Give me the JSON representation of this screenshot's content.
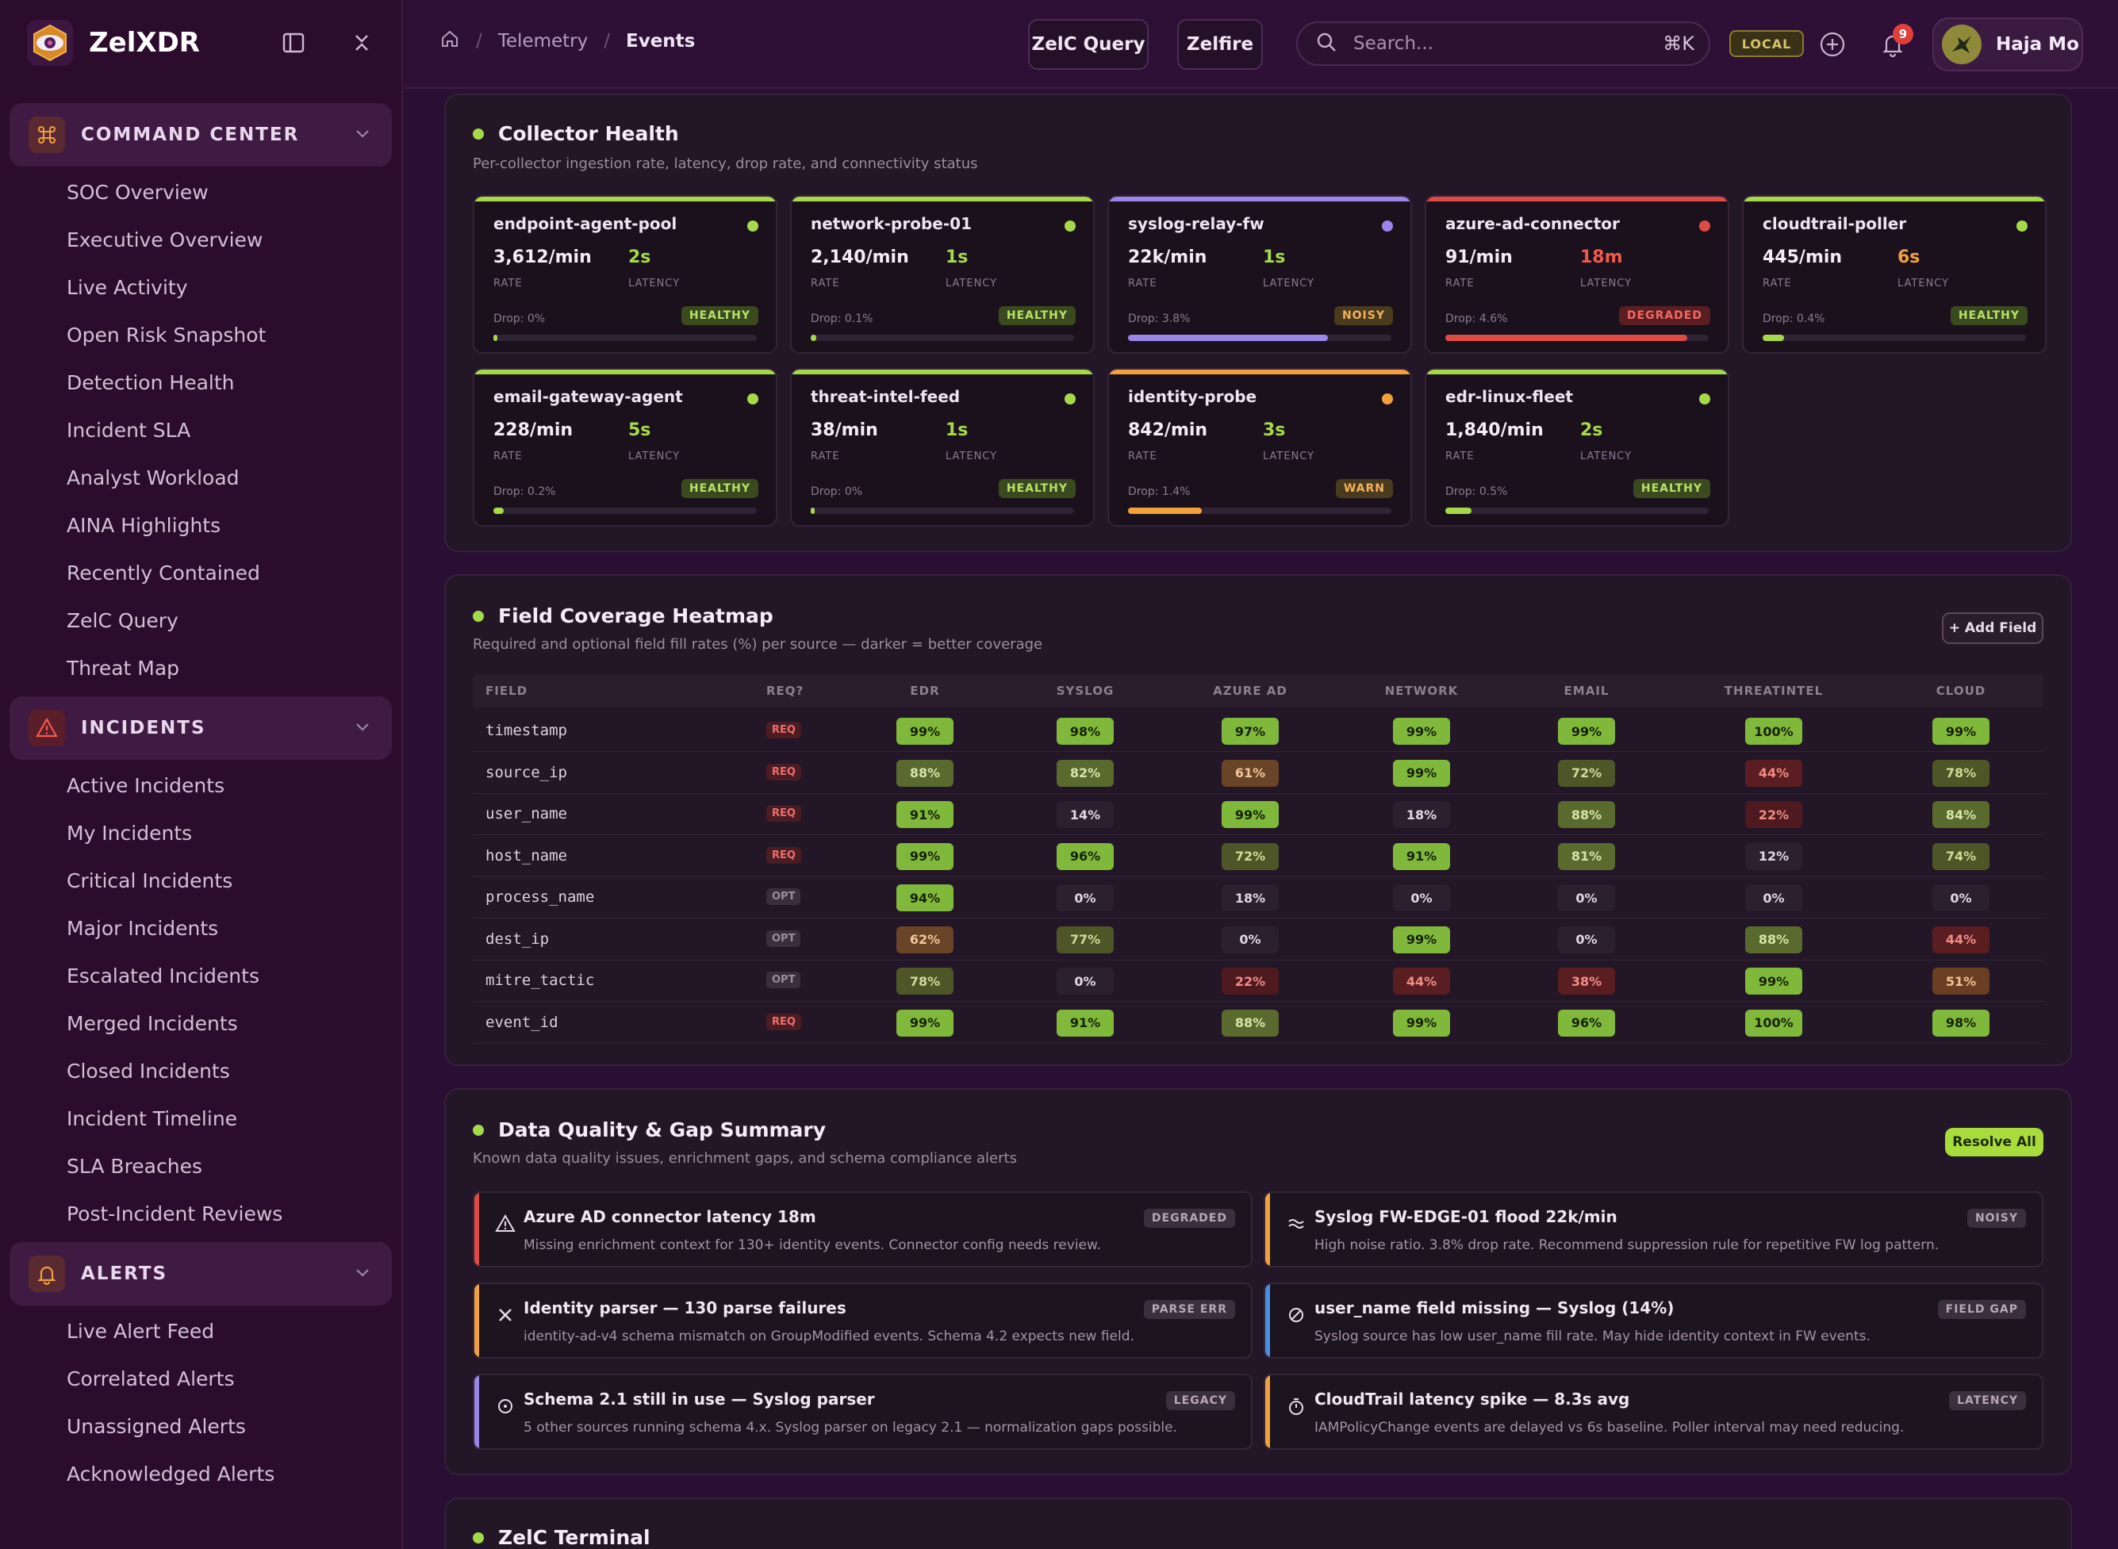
{
  "app": {
    "name": "ZelXDR"
  },
  "sidebar": {
    "sections": [
      {
        "label": "COMMAND CENTER",
        "items": [
          "SOC Overview",
          "Executive Overview",
          "Live Activity",
          "Open Risk Snapshot",
          "Detection Health",
          "Incident SLA",
          "Analyst Workload",
          "AINA Highlights",
          "Recently Contained",
          "ZelC Query",
          "Threat Map"
        ]
      },
      {
        "label": "INCIDENTS",
        "items": [
          "Active Incidents",
          "My Incidents",
          "Critical Incidents",
          "Major Incidents",
          "Escalated Incidents",
          "Merged Incidents",
          "Closed Incidents",
          "Incident Timeline",
          "SLA Breaches",
          "Post-Incident Reviews"
        ]
      },
      {
        "label": "ALERTS",
        "items": [
          "Live Alert Feed",
          "Correlated Alerts",
          "Unassigned Alerts",
          "Acknowledged Alerts"
        ]
      }
    ]
  },
  "topbar": {
    "breadcrumb": [
      "Telemetry",
      "Events"
    ],
    "query_btn": "ZelC Query",
    "zelfire_btn": "Zelfire",
    "search_placeholder": "Search...",
    "search_shortcut": "⌘K",
    "env_badge": "LOCAL",
    "notification_count": "9",
    "user_name": "Haja Mo"
  },
  "collector_health": {
    "title": "Collector Health",
    "subtitle": "Per-collector ingestion rate, latency, drop rate, and connectivity status",
    "rate_label": "RATE",
    "latency_label": "LATENCY",
    "collectors": [
      {
        "name": "endpoint-agent-pool",
        "rate": "3,612/min",
        "latency": "2s",
        "drop": "Drop: 0%",
        "status": "HEALTHY",
        "accent": "#a6d94a",
        "latency_color": "#a6d94a",
        "drop_fraction": 0
      },
      {
        "name": "network-probe-01",
        "rate": "2,140/min",
        "latency": "1s",
        "drop": "Drop: 0.1%",
        "status": "HEALTHY",
        "accent": "#a6d94a",
        "latency_color": "#a6d94a",
        "drop_fraction": 0.02
      },
      {
        "name": "syslog-relay-fw",
        "rate": "22k/min",
        "latency": "1s",
        "drop": "Drop: 3.8%",
        "status": "NOISY",
        "accent": "#9a86e8",
        "latency_color": "#a6d94a",
        "drop_fraction": 0.76
      },
      {
        "name": "azure-ad-connector",
        "rate": "91/min",
        "latency": "18m",
        "drop": "Drop: 4.6%",
        "status": "DEGRADED",
        "accent": "#e04a45",
        "latency_color": "#ef5a4e",
        "drop_fraction": 0.92
      },
      {
        "name": "cloudtrail-poller",
        "rate": "445/min",
        "latency": "6s",
        "drop": "Drop: 0.4%",
        "status": "HEALTHY",
        "accent": "#a6d94a",
        "latency_color": "#f2a03c",
        "drop_fraction": 0.08
      },
      {
        "name": "email-gateway-agent",
        "rate": "228/min",
        "latency": "5s",
        "drop": "Drop: 0.2%",
        "status": "HEALTHY",
        "accent": "#a6d94a",
        "latency_color": "#a6d94a",
        "drop_fraction": 0.04
      },
      {
        "name": "threat-intel-feed",
        "rate": "38/min",
        "latency": "1s",
        "drop": "Drop: 0%",
        "status": "HEALTHY",
        "accent": "#a6d94a",
        "latency_color": "#a6d94a",
        "drop_fraction": 0
      },
      {
        "name": "identity-probe",
        "rate": "842/min",
        "latency": "3s",
        "drop": "Drop: 1.4%",
        "status": "WARN",
        "accent": "#f2a03c",
        "latency_color": "#a6d94a",
        "drop_fraction": 0.28
      },
      {
        "name": "edr-linux-fleet",
        "rate": "1,840/min",
        "latency": "2s",
        "drop": "Drop: 0.5%",
        "status": "HEALTHY",
        "accent": "#a6d94a",
        "latency_color": "#a6d94a",
        "drop_fraction": 0.1
      }
    ]
  },
  "heatmap": {
    "title": "Field Coverage Heatmap",
    "subtitle": "Required and optional field fill rates (%) per source — darker = better coverage",
    "add_button": "+ Add Field",
    "columns": [
      "FIELD",
      "REQ?",
      "EDR",
      "SYSLOG",
      "AZURE AD",
      "NETWORK",
      "EMAIL",
      "THREATINTEL",
      "CLOUD"
    ],
    "rows": [
      {
        "field": "timestamp",
        "req": "REQ",
        "values": [
          99,
          98,
          97,
          99,
          99,
          100,
          99
        ]
      },
      {
        "field": "source_ip",
        "req": "REQ",
        "values": [
          88,
          82,
          61,
          99,
          72,
          44,
          78
        ]
      },
      {
        "field": "user_name",
        "req": "REQ",
        "values": [
          91,
          14,
          99,
          18,
          88,
          22,
          84
        ]
      },
      {
        "field": "host_name",
        "req": "REQ",
        "values": [
          99,
          96,
          72,
          91,
          81,
          12,
          74
        ]
      },
      {
        "field": "process_name",
        "req": "OPT",
        "values": [
          94,
          0,
          18,
          0,
          0,
          0,
          0
        ]
      },
      {
        "field": "dest_ip",
        "req": "OPT",
        "values": [
          62,
          77,
          0,
          99,
          0,
          88,
          44
        ]
      },
      {
        "field": "mitre_tactic",
        "req": "OPT",
        "values": [
          78,
          0,
          22,
          44,
          38,
          99,
          51
        ]
      },
      {
        "field": "event_id",
        "req": "REQ",
        "values": [
          99,
          91,
          88,
          99,
          96,
          100,
          98
        ]
      }
    ]
  },
  "data_quality": {
    "title": "Data Quality & Gap Summary",
    "subtitle": "Known data quality issues, enrichment gaps, and schema compliance alerts",
    "resolve_button": "Resolve All",
    "issues": [
      {
        "icon": "warning-icon",
        "title": "Azure AD connector latency 18m",
        "desc": "Missing enrichment context for 130+ identity events. Connector config needs review.",
        "tag": "DEGRADED",
        "accent": "#e04a45"
      },
      {
        "icon": "wave-icon",
        "title": "Syslog FW-EDGE-01 flood 22k/min",
        "desc": "High noise ratio. 3.8% drop rate. Recommend suppression rule for repetitive FW log pattern.",
        "tag": "NOISY",
        "accent": "#f2a03c"
      },
      {
        "icon": "close-icon",
        "title": "Identity parser — 130 parse failures",
        "desc": "identity-ad-v4 schema mismatch on GroupModified events. Schema 4.2 expects new field.",
        "tag": "PARSE ERR",
        "accent": "#f2a03c"
      },
      {
        "icon": "blocked-icon",
        "title": "user_name field missing — Syslog (14%)",
        "desc": "Syslog source has low user_name fill rate. May hide identity context in FW events.",
        "tag": "FIELD GAP",
        "accent": "#4a8ee0"
      },
      {
        "icon": "clock-icon",
        "title": "Schema 2.1 still in use — Syslog parser",
        "desc": "5 other sources running schema 4.x. Syslog parser on legacy 2.1 — normalization gaps possible.",
        "tag": "LEGACY",
        "accent": "#9a86e8"
      },
      {
        "icon": "stopwatch-icon",
        "title": "CloudTrail latency spike — 8.3s avg",
        "desc": "IAMPolicyChange events are delayed vs 6s baseline. Poller interval may need reducing.",
        "tag": "LATENCY",
        "accent": "#f2a03c"
      }
    ]
  },
  "terminal": {
    "title": "ZelC Terminal"
  }
}
